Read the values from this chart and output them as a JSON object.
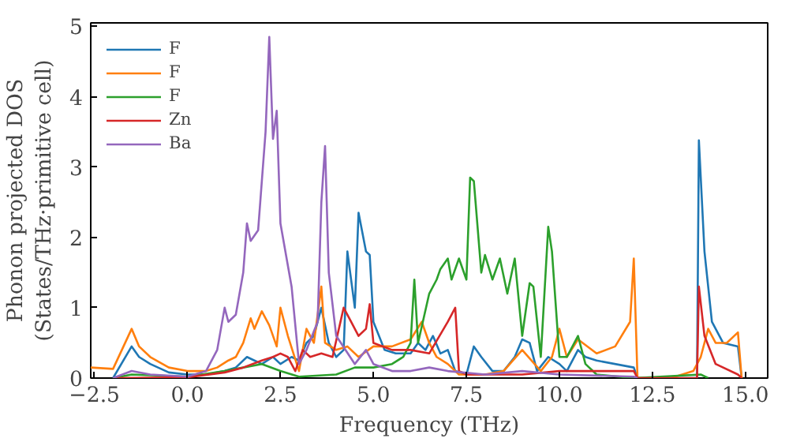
{
  "chart_data": {
    "type": "line",
    "xlabel": "Frequency (THz)",
    "ylabel": "Phonon projected DOS\n(States/THz·primitive cell)",
    "xlim": [
      -2.6,
      15.6
    ],
    "ylim": [
      0,
      5.05
    ],
    "xticks": [
      {
        "value": -2.5,
        "label": "−2.5"
      },
      {
        "value": 0,
        "label": "0.0"
      },
      {
        "value": 2.5,
        "label": "2.5"
      },
      {
        "value": 5,
        "label": "5.0"
      },
      {
        "value": 7.5,
        "label": "7.5"
      },
      {
        "value": 10,
        "label": "10.0"
      },
      {
        "value": 12.5,
        "label": "12.5"
      },
      {
        "value": 15,
        "label": "15.0"
      }
    ],
    "yticks": [
      0,
      1,
      2,
      3,
      4,
      5
    ],
    "grid": false,
    "legend": "top left",
    "marker": "none",
    "line_style": "solid",
    "series": [
      {
        "name": "F",
        "color": "#1f77b4",
        "x": [
          -2.0,
          -1.5,
          -1.3,
          -1.0,
          -0.5,
          0,
          0.5,
          1.0,
          1.3,
          1.6,
          1.8,
          2.0,
          2.3,
          2.5,
          2.8,
          3.0,
          3.2,
          3.4,
          3.6,
          3.8,
          4.0,
          4.2,
          4.3,
          4.5,
          4.6,
          4.8,
          4.9,
          5.0,
          5.3,
          5.6,
          6.0,
          6.2,
          6.4,
          6.6,
          6.8,
          7.0,
          7.2,
          7.5,
          7.7,
          7.9,
          8.2,
          8.5,
          8.8,
          9.0,
          9.2,
          9.4,
          9.7,
          10.0,
          10.2,
          10.5,
          10.7,
          11.0,
          12.0,
          12.1,
          13.5,
          13.7,
          13.75,
          13.9,
          14.1,
          14.4,
          14.8,
          14.9
        ],
        "values": [
          0,
          0.45,
          0.3,
          0.2,
          0.08,
          0.05,
          0.05,
          0.1,
          0.15,
          0.3,
          0.25,
          0.2,
          0.3,
          0.2,
          0.3,
          0.25,
          0.5,
          0.6,
          1.0,
          0.5,
          0.3,
          0.4,
          1.8,
          1.0,
          2.35,
          1.8,
          1.75,
          0.8,
          0.4,
          0.35,
          0.35,
          0.5,
          0.4,
          0.6,
          0.35,
          0.4,
          0.1,
          0.05,
          0.45,
          0.3,
          0.1,
          0.1,
          0.3,
          0.55,
          0.5,
          0.1,
          0.3,
          0.2,
          0.1,
          0.4,
          0.3,
          0.25,
          0.15,
          0,
          0,
          0,
          3.38,
          1.8,
          0.8,
          0.5,
          0.45,
          0
        ]
      },
      {
        "name": "F",
        "color": "#ff7f0e",
        "x": [
          -2.6,
          -2.0,
          -1.5,
          -1.3,
          -1.0,
          -0.5,
          0,
          0.5,
          0.8,
          1.1,
          1.3,
          1.5,
          1.7,
          1.8,
          2.0,
          2.2,
          2.4,
          2.5,
          2.7,
          3.0,
          3.2,
          3.4,
          3.6,
          3.7,
          4.0,
          4.3,
          4.6,
          5.0,
          5.5,
          6.0,
          6.3,
          6.5,
          6.7,
          7.0,
          7.3,
          8.0,
          8.5,
          9.0,
          9.5,
          9.8,
          10.0,
          10.2,
          10.5,
          11.0,
          11.5,
          11.9,
          12.0,
          12.1,
          13.0,
          13.6,
          13.8,
          14.0,
          14.2,
          14.5,
          14.8,
          14.9
        ],
        "values": [
          0.15,
          0.13,
          0.7,
          0.45,
          0.3,
          0.15,
          0.1,
          0.1,
          0.15,
          0.25,
          0.3,
          0.5,
          0.85,
          0.7,
          0.95,
          0.75,
          0.45,
          1.0,
          0.6,
          0.1,
          0.7,
          0.5,
          1.3,
          0.5,
          0.4,
          0.45,
          0.3,
          0.45,
          0.45,
          0.55,
          0.8,
          0.5,
          0.3,
          0.2,
          0.05,
          0.05,
          0.1,
          0.4,
          0.1,
          0.3,
          0.7,
          0.3,
          0.55,
          0.35,
          0.45,
          0.8,
          1.7,
          0,
          0,
          0.1,
          0.3,
          0.7,
          0.5,
          0.5,
          0.65,
          0
        ]
      },
      {
        "name": "F",
        "color": "#2ca02c",
        "x": [
          -2.0,
          -1.5,
          0,
          1.0,
          1.5,
          2.0,
          2.5,
          3.0,
          4.0,
          4.5,
          5.0,
          5.5,
          5.8,
          6.0,
          6.1,
          6.2,
          6.5,
          6.7,
          6.8,
          7.0,
          7.1,
          7.3,
          7.5,
          7.6,
          7.7,
          7.9,
          8.0,
          8.2,
          8.4,
          8.6,
          8.8,
          9.0,
          9.2,
          9.3,
          9.5,
          9.7,
          9.8,
          10.0,
          10.2,
          10.5,
          10.7,
          11.0,
          12.0,
          13.8,
          14.0
        ],
        "values": [
          0,
          0.05,
          0.02,
          0.1,
          0.15,
          0.2,
          0.1,
          0.02,
          0.05,
          0.15,
          0.15,
          0.2,
          0.3,
          0.5,
          1.4,
          0.5,
          1.2,
          1.4,
          1.55,
          1.7,
          1.4,
          1.7,
          1.4,
          2.85,
          2.8,
          1.5,
          1.75,
          1.4,
          1.7,
          1.2,
          1.7,
          0.6,
          1.35,
          1.3,
          0.3,
          2.15,
          1.8,
          0.3,
          0.3,
          0.6,
          0.2,
          0.05,
          0,
          0.05,
          0
        ]
      },
      {
        "name": "Zn",
        "color": "#d62728",
        "x": [
          -2.0,
          0,
          1.0,
          1.5,
          2.0,
          2.3,
          2.5,
          2.7,
          2.9,
          3.1,
          3.3,
          3.6,
          3.9,
          4.2,
          4.4,
          4.6,
          4.8,
          4.9,
          5.0,
          5.5,
          6.0,
          6.5,
          7.0,
          7.2,
          7.3,
          7.5,
          9.0,
          10.0,
          12.0,
          12.1,
          13.7,
          13.75,
          13.9,
          14.2,
          14.8,
          14.9
        ],
        "values": [
          0,
          0.01,
          0.08,
          0.15,
          0.25,
          0.3,
          0.35,
          0.3,
          0.1,
          0.4,
          0.3,
          0.35,
          0.3,
          1.0,
          0.8,
          0.6,
          0.7,
          1.05,
          0.5,
          0.4,
          0.4,
          0.35,
          0.8,
          1.0,
          0.1,
          0.05,
          0.05,
          0.1,
          0.1,
          0,
          0,
          1.3,
          0.6,
          0.2,
          0.05,
          0
        ]
      },
      {
        "name": "Ba",
        "color": "#9467bd",
        "x": [
          -2.0,
          -1.5,
          -1.0,
          0,
          0.5,
          0.8,
          1.0,
          1.1,
          1.3,
          1.5,
          1.6,
          1.7,
          1.9,
          2.0,
          2.1,
          2.2,
          2.3,
          2.4,
          2.5,
          2.8,
          3.0,
          3.2,
          3.5,
          3.6,
          3.7,
          3.8,
          4.0,
          4.5,
          4.8,
          5.0,
          5.5,
          6.0,
          6.5,
          7.0,
          8.0,
          9.0,
          10.0,
          12.0,
          12.1
        ],
        "values": [
          0,
          0.1,
          0.05,
          0.02,
          0.1,
          0.4,
          1.0,
          0.8,
          0.9,
          1.5,
          2.2,
          1.95,
          2.1,
          2.8,
          3.5,
          4.85,
          3.4,
          3.8,
          2.2,
          1.3,
          0.2,
          0.4,
          0.8,
          2.5,
          3.3,
          1.5,
          0.6,
          0.2,
          0.4,
          0.2,
          0.1,
          0.1,
          0.15,
          0.1,
          0.05,
          0.1,
          0.05,
          0.02,
          0
        ]
      }
    ]
  }
}
